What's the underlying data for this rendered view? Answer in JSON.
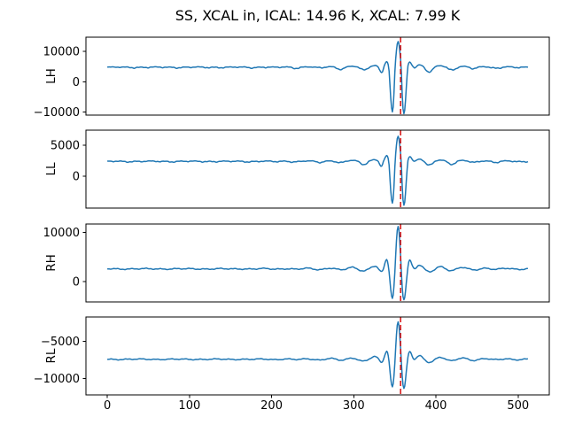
{
  "chart_data": {
    "type": "line",
    "title": "SS, XCAL in, ICAL: 14.96 K, XCAL: 7.99 K",
    "layout": "4 stacked subplots sharing x axis",
    "line_color": "#1f77b4",
    "axes_color": "#000000",
    "background_color": "#ffffff",
    "x_axis": {
      "ticks": [
        0,
        100,
        200,
        300,
        400,
        500
      ],
      "lim": [
        -26,
        538
      ],
      "n_points": 513
    },
    "marker_line": {
      "x": 357,
      "color": "#d40000",
      "style": "dashed",
      "orientation": "vertical"
    },
    "signal": {
      "description": "flat baseline with oscillatory wavelet burst",
      "center": 354,
      "sigma": 9,
      "period": 15,
      "tail_amp": 0.13,
      "tail_period": 27,
      "tail_decay": 48,
      "noise_amp": 0.015
    },
    "panels": [
      {
        "ylabel": "LH",
        "yticks": [
          10000,
          0,
          -10000
        ],
        "ylim": [
          -11000,
          14700
        ],
        "baseline": 4800,
        "peak": 13300,
        "trough": -10300
      },
      {
        "ylabel": "LL",
        "yticks": [
          5000,
          0
        ],
        "ylim": [
          -5100,
          7400
        ],
        "baseline": 2400,
        "peak": 6400,
        "trough": -4400
      },
      {
        "ylabel": "RH",
        "yticks": [
          10000,
          0
        ],
        "ylim": [
          -4100,
          11700
        ],
        "baseline": 2600,
        "peak": 11200,
        "trough": -3400
      },
      {
        "ylabel": "RL",
        "yticks": [
          -5000,
          -10000
        ],
        "ylim": [
          -12200,
          -1700
        ],
        "baseline": -7400,
        "peak": -2300,
        "trough": -11200
      }
    ]
  }
}
